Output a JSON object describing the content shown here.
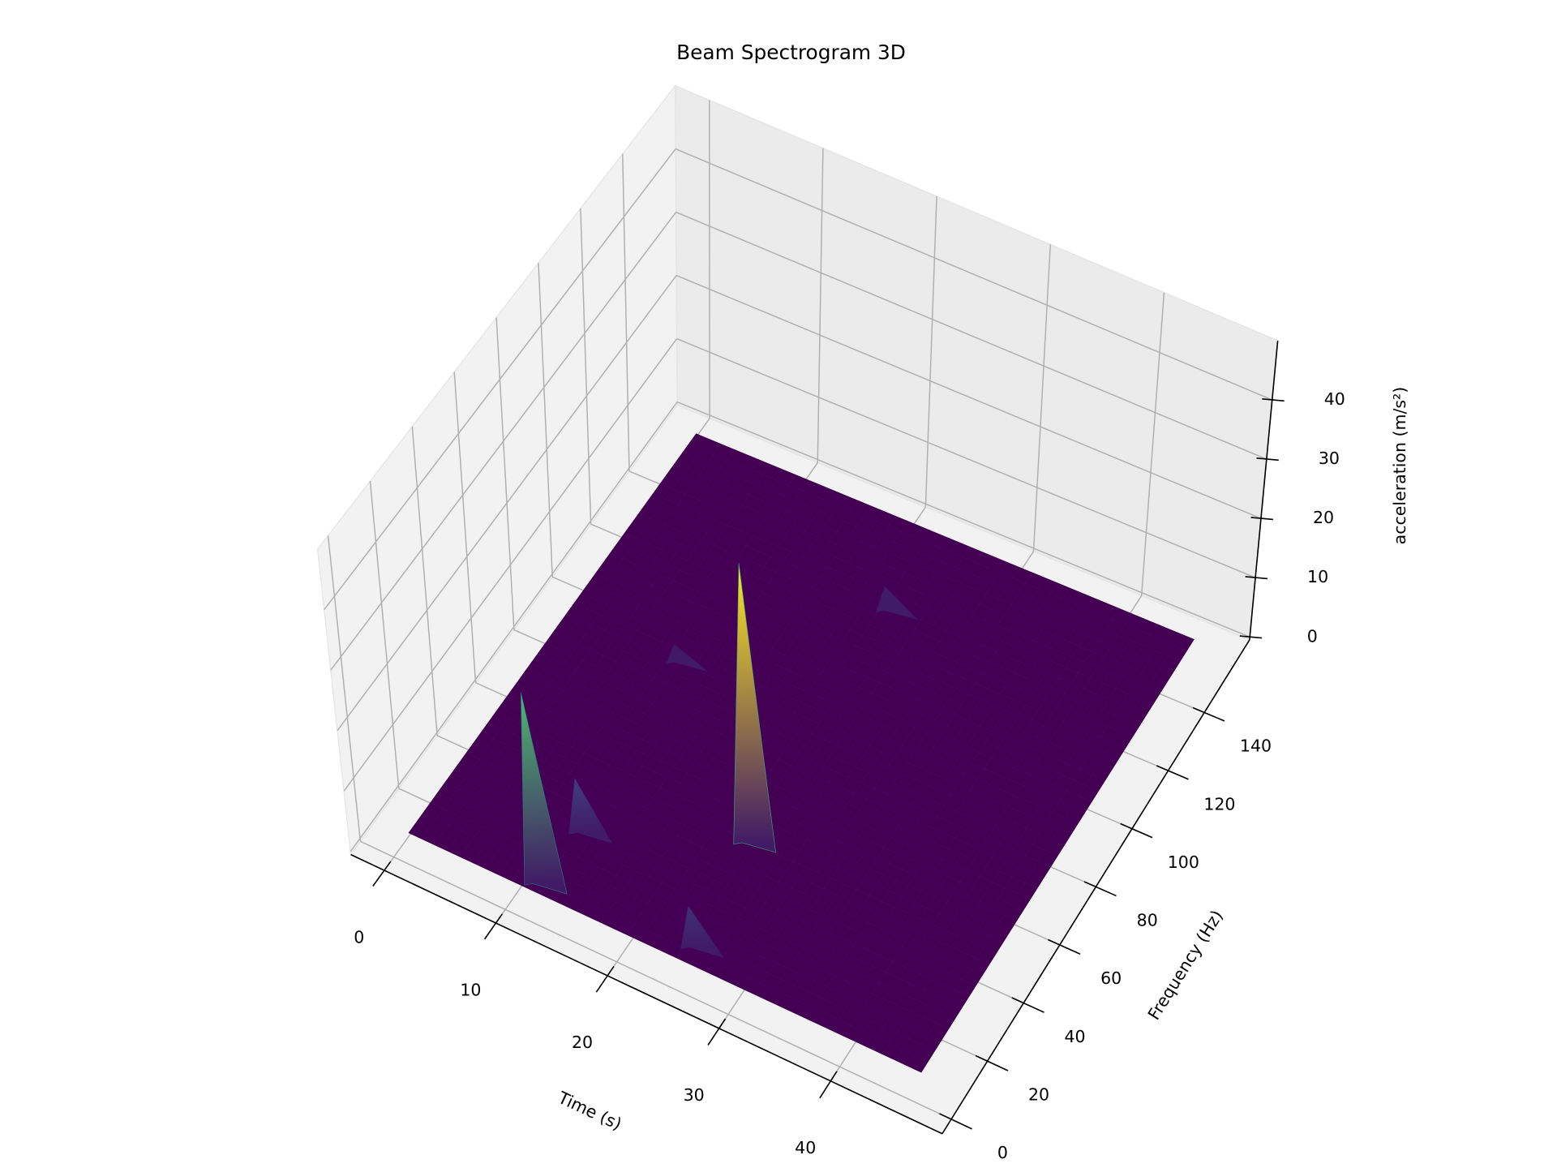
{
  "chart_data": {
    "type": "surface3d",
    "title": "Beam Spectrogram 3D",
    "x_label": "Time (s)",
    "y_label": "Frequency (Hz)",
    "z_label": "acceleration (m/s²)",
    "colormap": "viridis",
    "xlim": [
      -3,
      50
    ],
    "ylim": [
      -5,
      165
    ],
    "zlim": [
      -0.5,
      50
    ],
    "xticks": [
      0,
      10,
      20,
      30,
      40
    ],
    "yticks": [
      0,
      20,
      40,
      60,
      80,
      100,
      120,
      140
    ],
    "zticks": [
      0,
      10,
      20,
      30,
      40
    ],
    "grid": true,
    "surface": {
      "time": [
        0,
        46
      ],
      "frequency": [
        8,
        158
      ]
    },
    "peaks": [
      {
        "time": 10.8,
        "frequency": 10,
        "acceleration": 32
      },
      {
        "time": 23.2,
        "frequency": 48,
        "acceleration": 47
      },
      {
        "time": 11.4,
        "frequency": 30,
        "acceleration": 9
      },
      {
        "time": 24.4,
        "frequency": 12.6,
        "acceleration": 7
      },
      {
        "time": 9.9,
        "frequency": 90,
        "acceleration": 3
      },
      {
        "time": 22.2,
        "frequency": 130,
        "acceleration": 4
      }
    ]
  }
}
